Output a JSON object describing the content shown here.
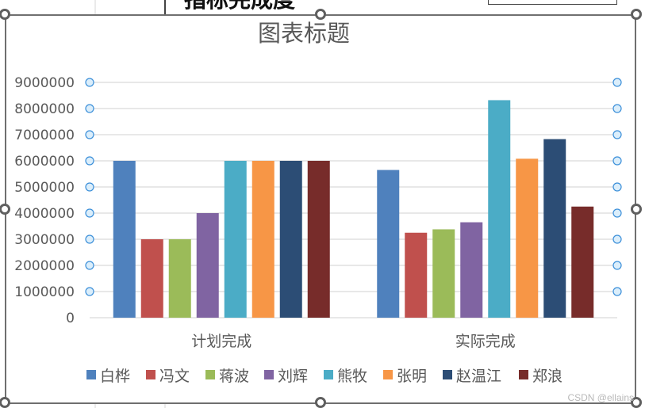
{
  "header_fragment": "指标完成度",
  "watermark": "CSDN @ellains",
  "colors": {
    "axis": "#d9d9d9",
    "gridline": "#d9d9d9",
    "text": "#595959",
    "error_marker": "#3b8fd9",
    "error_marker_fill": "#dbeefb"
  },
  "chart_data": {
    "type": "bar",
    "title": "图表标题",
    "categories": [
      "计划完成",
      "实际完成"
    ],
    "y_ticks": [
      "0",
      "1000000",
      "2000000",
      "3000000",
      "4000000",
      "5000000",
      "6000000",
      "7000000",
      "8000000",
      "9000000"
    ],
    "ylim": [
      0,
      9000000
    ],
    "grid": true,
    "legend_position": "bottom",
    "series": [
      {
        "name": "白桦",
        "color": "#4f81bd",
        "values": [
          6000000,
          5650000
        ]
      },
      {
        "name": "冯文",
        "color": "#c0504d",
        "values": [
          3000000,
          3250000
        ]
      },
      {
        "name": "蒋波",
        "color": "#9bbb59",
        "values": [
          3000000,
          3380000
        ]
      },
      {
        "name": "刘辉",
        "color": "#8064a2",
        "values": [
          4000000,
          3650000
        ]
      },
      {
        "name": "熊牧",
        "color": "#4bacc6",
        "values": [
          6000000,
          8320000
        ]
      },
      {
        "name": "张明",
        "color": "#f79646",
        "values": [
          6000000,
          6080000
        ]
      },
      {
        "name": "赵温江",
        "color": "#2c4d75",
        "values": [
          6000000,
          6830000
        ]
      },
      {
        "name": "郑浪",
        "color": "#772c2a",
        "values": [
          6000000,
          4250000
        ]
      }
    ]
  }
}
